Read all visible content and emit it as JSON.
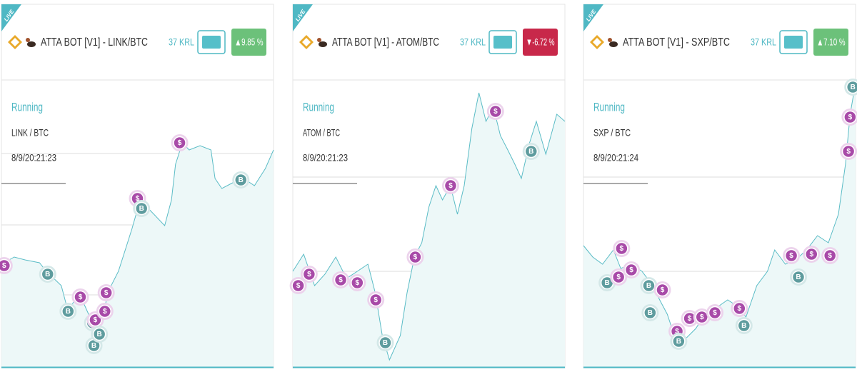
{
  "cards": [
    {
      "live": "LIVE",
      "title": "ATTA BOT [V1] - LINK/BTC",
      "krl": "37 KRL",
      "change": "▲9.85 %",
      "change_color": "#6cc17a",
      "status": "Running",
      "pair": "LINK / BTC",
      "date": "8/9/20:21:23",
      "chart": {
        "type": "line",
        "xlim": [
          0,
          100
        ],
        "ylim": [
          0,
          100
        ],
        "x": [
          0,
          4.7,
          8.7,
          14,
          16.5,
          22,
          24.5,
          28.5,
          32.5,
          35,
          37.6,
          39,
          43,
          45.5,
          48,
          51,
          53.5,
          56,
          60,
          62.5,
          64,
          66.5,
          69,
          73,
          77,
          78.5,
          81,
          85,
          89,
          93,
          97,
          100
        ],
        "values": [
          36.5,
          39,
          38,
          37,
          34,
          29,
          20,
          26.5,
          18,
          11.5,
          19,
          26.5,
          34,
          41.5,
          49,
          59,
          56.5,
          54,
          50,
          59,
          71.5,
          79,
          76.5,
          78,
          76.5,
          66.5,
          63,
          65,
          66.5,
          64,
          70,
          76.5
        ],
        "trades": {
          "x": [
            1,
            17,
            24.5,
            29,
            33.5,
            34.5,
            34,
            36,
            38,
            38.5,
            50,
            51.5,
            65.5,
            88
          ],
          "values": [
            36,
            33,
            20,
            25,
            16,
            17,
            8,
            12,
            20,
            26.5,
            59.5,
            56,
            79,
            66
          ],
          "labels": [
            "$",
            "B",
            "B",
            "$",
            "B",
            "$",
            "B",
            "B",
            "$",
            "$",
            "$",
            "B",
            "$",
            "B"
          ]
        }
      }
    },
    {
      "live": "LIVE",
      "title": "ATTA BOT [V1] - ATOM/BTC",
      "krl": "37 KRL",
      "change": "▼-6.72 %",
      "change_color": "#c8284a",
      "status": "Running",
      "pair": "ATOM / BTC",
      "date": "8/9/20:21:23",
      "chart": {
        "type": "line",
        "xlim": [
          0,
          100
        ],
        "ylim": [
          0,
          100
        ],
        "x": [
          0,
          4,
          8,
          11.8,
          15.8,
          19.7,
          23.7,
          27.6,
          30.3,
          32.9,
          35.5,
          39.5,
          42,
          44.7,
          47.4,
          50,
          52.6,
          55,
          57.9,
          60.5,
          63,
          65.8,
          68.4,
          71,
          73.7,
          76.3,
          79,
          81.6,
          84,
          87,
          89.5,
          93,
          97,
          100
        ],
        "values": [
          34,
          40,
          29,
          33,
          39,
          31.5,
          34,
          36.5,
          26.5,
          11.5,
          3,
          11.5,
          26.5,
          39,
          44,
          56.5,
          64,
          59,
          64,
          54,
          64,
          84,
          96.5,
          86.5,
          91.5,
          81.5,
          76.5,
          71.5,
          66.5,
          79,
          86.5,
          75,
          89,
          86.5
        ],
        "trades": {
          "x": [
            2,
            6,
            17.6,
            23.7,
            30.5,
            34,
            45,
            58,
            74.5,
            87.6
          ],
          "values": [
            29,
            33,
            31,
            30,
            24,
            9,
            39,
            64,
            90,
            76
          ],
          "labels": [
            "$",
            "$",
            "$",
            "$",
            "$",
            "B",
            "$",
            "$",
            "$",
            "B"
          ]
        }
      }
    },
    {
      "live": "LIVE",
      "title": "ATTA BOT [V1] - SXP/BTC",
      "krl": "37 KRL",
      "change": "▲7.10 %",
      "change_color": "#6cc17a",
      "status": "Running",
      "pair": "SXP / BTC",
      "date": "8/9/20:21:24",
      "chart": {
        "type": "line",
        "xlim": [
          0,
          100
        ],
        "ylim": [
          0,
          100
        ],
        "x": [
          0,
          3.4,
          7,
          11,
          13.7,
          17.6,
          21.5,
          25.5,
          28,
          30.8,
          33.4,
          36,
          38.7,
          41.3,
          45.3,
          49.2,
          53,
          57,
          59.7,
          63.7,
          67.6,
          70.3,
          74.2,
          78,
          82,
          86,
          90,
          93.7,
          96.3,
          98,
          100
        ],
        "values": [
          43,
          39,
          36.5,
          41.5,
          35,
          36.5,
          34,
          29,
          24,
          19,
          11.5,
          9,
          11.5,
          14,
          20,
          21.5,
          24,
          21.5,
          18,
          29,
          34,
          41.5,
          36.5,
          38,
          41.5,
          46.5,
          44,
          54,
          71.5,
          89,
          100
        ],
        "trades": {
          "x": [
            8.7,
            12.9,
            14,
            17.6,
            24,
            29,
            24.5,
            34.4,
            35,
            39,
            43.5,
            48.3,
            57.3,
            59,
            76.4,
            79,
            83.8,
            90.6,
            97.4,
            98,
            99
          ],
          "values": [
            30,
            32,
            42,
            34.5,
            29,
            27.5,
            19.5,
            13,
            9.5,
            17.5,
            18,
            19.5,
            21,
            15,
            39.5,
            32,
            40,
            39.5,
            76,
            88,
            98.5
          ],
          "labels": [
            "B",
            "$",
            "$",
            "$",
            "B",
            "$",
            "B",
            "$",
            "B",
            "$",
            "$",
            "$",
            "$",
            "B",
            "$",
            "B",
            "$",
            "$",
            "$",
            "$",
            "B"
          ]
        }
      }
    }
  ]
}
